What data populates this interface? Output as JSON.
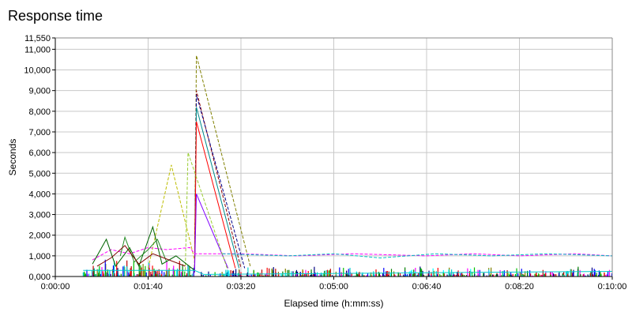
{
  "chart_data": {
    "type": "line",
    "title": "Response time",
    "xlabel": "Elapsed time (h:mm:ss)",
    "ylabel": "Seconds",
    "xlim": [
      0,
      600
    ],
    "ylim": [
      0,
      11550
    ],
    "y_ticks": [
      0,
      1000,
      2000,
      3000,
      4000,
      5000,
      6000,
      7000,
      8000,
      9000,
      10000,
      11000,
      11550
    ],
    "y_tick_labels": [
      "0,000",
      "1,000",
      "2,000",
      "3,000",
      "4,000",
      "5,000",
      "6,000",
      "7,000",
      "8,000",
      "9,000",
      "10,000",
      "11,000",
      "11,550"
    ],
    "x_ticks": [
      0,
      100,
      200,
      300,
      400,
      500,
      600
    ],
    "x_tick_labels": [
      "0:00:00",
      "0:01:40",
      "0:03:20",
      "0:05:00",
      "0:06:40",
      "0:08:20",
      "0:10:00"
    ],
    "grid": true,
    "series": [
      {
        "color": "#bdbd00",
        "dash": true,
        "points": [
          [
            100,
            400
          ],
          [
            125,
            5400
          ],
          [
            150,
            800
          ],
          [
            151,
            5400
          ]
        ]
      },
      {
        "color": "#808000",
        "dash": true,
        "points": [
          [
            150,
            200
          ],
          [
            152,
            10700
          ],
          [
            210,
            500
          ]
        ]
      },
      {
        "color": "#8b0000",
        "dash": true,
        "points": [
          [
            150,
            200
          ],
          [
            152,
            9000
          ],
          [
            200,
            400
          ]
        ]
      },
      {
        "color": "#00008b",
        "dash": true,
        "points": [
          [
            150,
            200
          ],
          [
            152,
            8800
          ],
          [
            204,
            400
          ]
        ]
      },
      {
        "color": "#008b8b",
        "dash": false,
        "points": [
          [
            150,
            200
          ],
          [
            152,
            8200
          ],
          [
            198,
            400
          ]
        ]
      },
      {
        "color": "#ff0000",
        "dash": false,
        "points": [
          [
            150,
            200
          ],
          [
            152,
            7500
          ],
          [
            194,
            400
          ]
        ]
      },
      {
        "color": "#8000ff",
        "dash": false,
        "points": [
          [
            150,
            200
          ],
          [
            152,
            4000
          ],
          [
            186,
            400
          ]
        ]
      },
      {
        "color": "#9acd32",
        "dash": true,
        "points": [
          [
            140,
            300
          ],
          [
            143,
            6000
          ],
          [
            185,
            400
          ]
        ]
      },
      {
        "color": "#ff00ff",
        "dash": true,
        "points": [
          [
            40,
            800
          ],
          [
            60,
            1300
          ],
          [
            80,
            1100
          ],
          [
            100,
            1400
          ],
          [
            120,
            1300
          ],
          [
            145,
            1400
          ],
          [
            150,
            1100
          ],
          [
            200,
            1100
          ],
          [
            260,
            1000
          ],
          [
            320,
            1100
          ],
          [
            400,
            1000
          ],
          [
            450,
            1100
          ],
          [
            500,
            1000
          ],
          [
            560,
            1100
          ],
          [
            600,
            1000
          ]
        ]
      },
      {
        "color": "#00c0c0",
        "dash": true,
        "points": [
          [
            180,
            1100
          ],
          [
            250,
            1000
          ],
          [
            300,
            1100
          ],
          [
            350,
            900
          ],
          [
            410,
            1100
          ],
          [
            470,
            1000
          ],
          [
            530,
            1100
          ],
          [
            600,
            1000
          ]
        ]
      },
      {
        "color": "#006400",
        "dash": false,
        "points": [
          [
            40,
            600
          ],
          [
            55,
            1800
          ],
          [
            65,
            500
          ],
          [
            80,
            1400
          ],
          [
            90,
            500
          ],
          [
            105,
            2400
          ],
          [
            115,
            600
          ],
          [
            130,
            1000
          ],
          [
            150,
            300
          ]
        ]
      },
      {
        "color": "#228b22",
        "dash": false,
        "points": [
          [
            70,
            1000
          ],
          [
            75,
            1900
          ],
          [
            85,
            700
          ],
          [
            100,
            1300
          ],
          [
            110,
            1800
          ],
          [
            120,
            700
          ]
        ]
      },
      {
        "color": "#800000",
        "dash": false,
        "points": [
          [
            45,
            500
          ],
          [
            60,
            900
          ],
          [
            75,
            1500
          ],
          [
            90,
            600
          ],
          [
            105,
            1100
          ],
          [
            140,
            500
          ]
        ]
      },
      {
        "color": "#00cccc",
        "dash": false,
        "points": [
          [
            30,
            300
          ],
          [
            150,
            300
          ],
          [
            160,
            100
          ],
          [
            600,
            250
          ]
        ]
      }
    ]
  }
}
